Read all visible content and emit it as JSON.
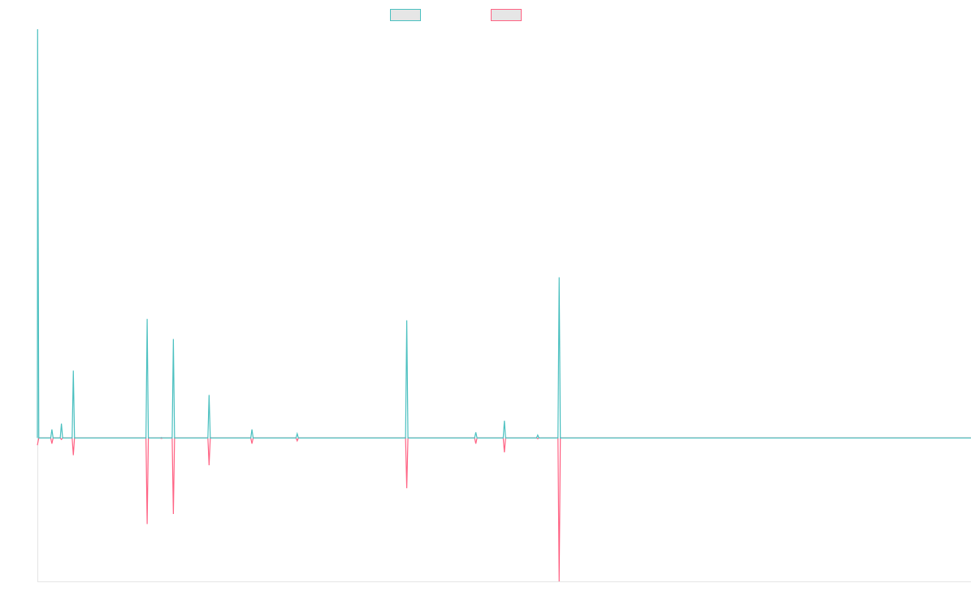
{
  "chart_data": {
    "type": "line",
    "title": "",
    "xlabel": "",
    "ylabel": "",
    "grid": false,
    "legend_position": "top-center",
    "ylim": [
      -100,
      285
    ],
    "series": [
      {
        "color": "#4bc0c0",
        "points": [
          [
            0,
            0
          ],
          [
            0.05,
            285
          ],
          [
            0.3,
            0
          ],
          [
            2.8,
            0
          ],
          [
            3.05,
            6
          ],
          [
            3.3,
            0
          ],
          [
            4.8,
            0
          ],
          [
            5.05,
            10
          ],
          [
            5.3,
            0
          ],
          [
            7.3,
            0
          ],
          [
            7.55,
            47
          ],
          [
            7.8,
            0
          ],
          [
            22.8,
            0
          ],
          [
            23.05,
            83
          ],
          [
            23.3,
            0
          ],
          [
            25.8,
            0
          ],
          [
            26.05,
            0.3
          ],
          [
            26.3,
            0
          ],
          [
            28.3,
            0
          ],
          [
            28.55,
            69
          ],
          [
            28.8,
            0
          ],
          [
            35.8,
            0
          ],
          [
            36.05,
            30
          ],
          [
            36.3,
            0
          ],
          [
            44.8,
            0
          ],
          [
            45.05,
            6
          ],
          [
            45.3,
            0
          ],
          [
            54.3,
            0
          ],
          [
            54.55,
            3
          ],
          [
            54.8,
            0
          ],
          [
            77.3,
            0
          ],
          [
            77.55,
            82
          ],
          [
            77.8,
            0
          ],
          [
            91.8,
            0
          ],
          [
            92.05,
            4
          ],
          [
            92.3,
            0
          ],
          [
            97.8,
            0
          ],
          [
            98.05,
            12
          ],
          [
            98.3,
            0
          ],
          [
            104.8,
            0
          ],
          [
            105.05,
            2
          ],
          [
            105.3,
            0
          ],
          [
            109.3,
            0
          ],
          [
            109.55,
            112
          ],
          [
            109.8,
            0
          ],
          [
            196,
            0
          ]
        ]
      },
      {
        "color": "#ff6384",
        "points": [
          [
            0,
            -5
          ],
          [
            0.3,
            0
          ],
          [
            2.8,
            0
          ],
          [
            3.05,
            -4
          ],
          [
            3.3,
            0
          ],
          [
            4.8,
            0
          ],
          [
            5.05,
            -1
          ],
          [
            5.3,
            0
          ],
          [
            7.3,
            0
          ],
          [
            7.55,
            -12
          ],
          [
            7.8,
            0
          ],
          [
            22.8,
            0
          ],
          [
            23.05,
            -60
          ],
          [
            23.3,
            0
          ],
          [
            25.8,
            0
          ],
          [
            26.05,
            -0.3
          ],
          [
            26.3,
            0
          ],
          [
            28.3,
            0
          ],
          [
            28.55,
            -53
          ],
          [
            28.8,
            0
          ],
          [
            35.8,
            0
          ],
          [
            36.05,
            -19
          ],
          [
            36.3,
            0
          ],
          [
            44.8,
            0
          ],
          [
            45.05,
            -4
          ],
          [
            45.3,
            0
          ],
          [
            54.3,
            0
          ],
          [
            54.55,
            -2
          ],
          [
            54.8,
            0
          ],
          [
            77.3,
            0
          ],
          [
            77.55,
            -35
          ],
          [
            77.8,
            0
          ],
          [
            91.8,
            0
          ],
          [
            92.05,
            -4
          ],
          [
            92.3,
            0
          ],
          [
            97.8,
            0
          ],
          [
            98.05,
            -10
          ],
          [
            98.3,
            0
          ],
          [
            104.8,
            0
          ],
          [
            105.05,
            -0.5
          ],
          [
            105.3,
            0
          ],
          [
            109.3,
            0
          ],
          [
            109.55,
            -100
          ],
          [
            109.8,
            0
          ],
          [
            196,
            0
          ]
        ]
      }
    ]
  }
}
